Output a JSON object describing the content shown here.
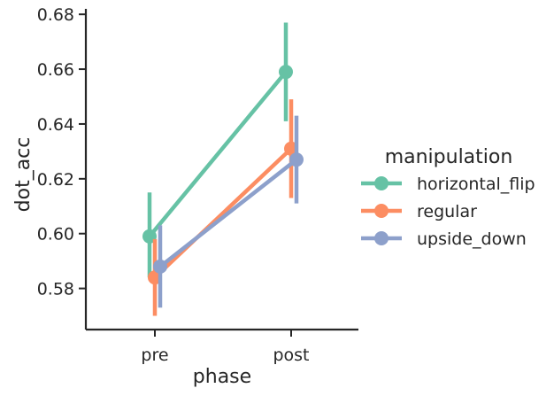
{
  "chart_data": {
    "type": "line",
    "title": "",
    "xlabel": "phase",
    "ylabel": "dot_acc",
    "categories": [
      "pre",
      "post"
    ],
    "ylim": [
      0.565,
      0.682
    ],
    "yticks": [
      "0.58",
      "0.60",
      "0.62",
      "0.64",
      "0.66",
      "0.68"
    ],
    "grid": false,
    "legend": {
      "title": "manipulation",
      "placement": "right"
    },
    "series": [
      {
        "name": "horizontal_flip",
        "color": "#66c2a5",
        "values": [
          0.599,
          0.659
        ],
        "ci_low": [
          0.584,
          0.641
        ],
        "ci_high": [
          0.615,
          0.677
        ]
      },
      {
        "name": "regular",
        "color": "#fc8d62",
        "values": [
          0.584,
          0.631
        ],
        "ci_low": [
          0.57,
          0.613
        ],
        "ci_high": [
          0.598,
          0.649
        ]
      },
      {
        "name": "upside_down",
        "color": "#8da0cb",
        "values": [
          0.588,
          0.627
        ],
        "ci_low": [
          0.573,
          0.611
        ],
        "ci_high": [
          0.603,
          0.643
        ]
      }
    ]
  }
}
